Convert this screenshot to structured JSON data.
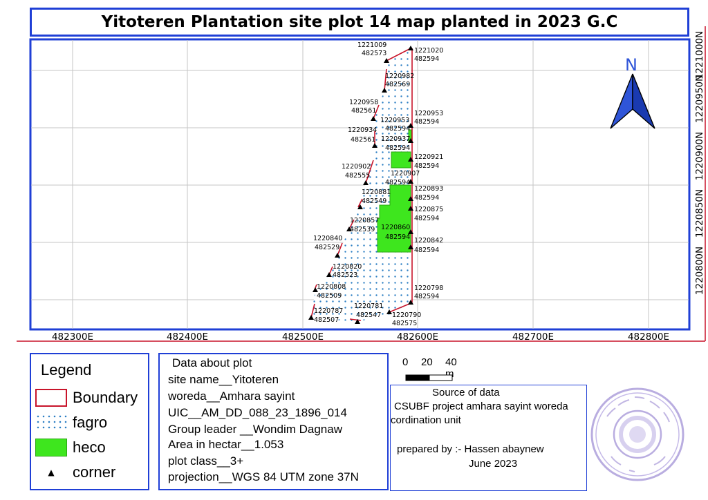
{
  "title": "Yitoteren Plantation site plot 14 map planted in 2023 G.C",
  "map": {
    "north_label": "N",
    "easting_labels": [
      "482300E",
      "482400E",
      "482500E",
      "482600E",
      "482700E",
      "482800E"
    ],
    "northing_labels": [
      "1220800N",
      "1220850N",
      "1220900N",
      "1220950N",
      "1221000N"
    ],
    "corners": [
      {
        "n": "1221020",
        "e": "482594"
      },
      {
        "n": "1221009",
        "e": "482573"
      },
      {
        "n": "1220982",
        "e": "482569"
      },
      {
        "n": "1220958",
        "e": "482561"
      },
      {
        "n": "1220953",
        "e": "482594"
      },
      {
        "n": "1220953",
        "e": "482594"
      },
      {
        "n": "1220934",
        "e": "482561"
      },
      {
        "n": "1220937",
        "e": "482594"
      },
      {
        "n": "1220921",
        "e": "482594"
      },
      {
        "n": "1220902",
        "e": "482555"
      },
      {
        "n": "1220907",
        "e": "482594"
      },
      {
        "n": "1220893",
        "e": "482594"
      },
      {
        "n": "1220881",
        "e": "482549"
      },
      {
        "n": "1220875",
        "e": "482594"
      },
      {
        "n": "1220857",
        "e": "482539"
      },
      {
        "n": "1220860",
        "e": "482594"
      },
      {
        "n": "1220842",
        "e": "482594"
      },
      {
        "n": "1220840",
        "e": "482529"
      },
      {
        "n": "1220820",
        "e": "482523"
      },
      {
        "n": "1220808",
        "e": "482509"
      },
      {
        "n": "1220798",
        "e": "482594"
      },
      {
        "n": "1220787",
        "e": "482507"
      },
      {
        "n": "1220781",
        "e": "482547"
      },
      {
        "n": "1220790",
        "e": "482575"
      }
    ]
  },
  "legend": {
    "title": "Legend",
    "items": [
      {
        "label": "Boundary",
        "kind": "boundary"
      },
      {
        "label": "fagro",
        "kind": "fagro"
      },
      {
        "label": "heco",
        "kind": "heco"
      },
      {
        "label": "corner",
        "kind": "corner"
      }
    ]
  },
  "plot_info": {
    "heading": "Data about plot",
    "lines": [
      "site name__Yitoteren",
      "woreda__Amhara sayint",
      "UIC__AM_DD_088_23_1896_014",
      "Group leader __Wondim Dagnaw",
      "Area in hectar__1.053",
      "plot class__3+",
      "projection__WGS 84 UTM zone 37N"
    ]
  },
  "scale": {
    "labels": [
      "0",
      "20",
      "40 m"
    ]
  },
  "source": {
    "lines": [
      "Source of data",
      "CSUBF project amhara sayint woreda",
      "cordination unit",
      "prepared by :- Hassen abaynew",
      "June 2023"
    ]
  },
  "colors": {
    "frame": "#1f3fd6",
    "boundary": "#c8142a",
    "heco": "#3ee61e",
    "fagro_dot": "#2d7fc4",
    "north": "#2f55d8"
  }
}
